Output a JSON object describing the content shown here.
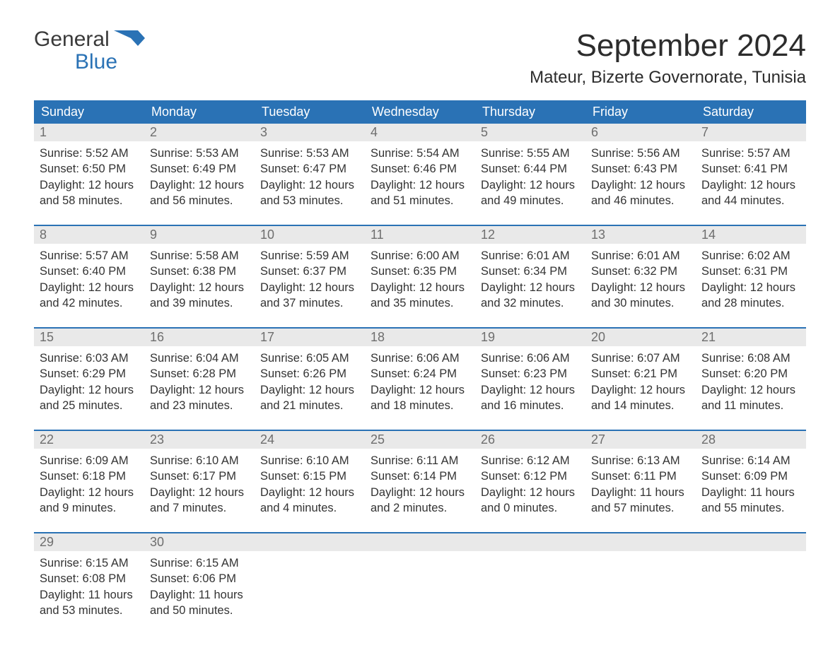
{
  "brand": {
    "general": "General",
    "blue": "Blue"
  },
  "title": "September 2024",
  "location": "Mateur, Bizerte Governorate, Tunisia",
  "colors": {
    "header_bg": "#2a72b5",
    "header_text": "#ffffff",
    "daynum_bg": "#e9e9e9",
    "daynum_text": "#6e6e6e",
    "body_text": "#333333",
    "row_divider": "#2a72b5",
    "page_bg": "#ffffff"
  },
  "typography": {
    "title_fontsize": 44,
    "location_fontsize": 24,
    "weekday_fontsize": 18,
    "daynum_fontsize": 18,
    "cell_fontsize": 16.5,
    "font_family": "Arial"
  },
  "weekdays": [
    "Sunday",
    "Monday",
    "Tuesday",
    "Wednesday",
    "Thursday",
    "Friday",
    "Saturday"
  ],
  "weeks": [
    [
      {
        "n": "1",
        "sunrise": "5:52 AM",
        "sunset": "6:50 PM",
        "dl1": "12 hours",
        "dl2": "and 58 minutes."
      },
      {
        "n": "2",
        "sunrise": "5:53 AM",
        "sunset": "6:49 PM",
        "dl1": "12 hours",
        "dl2": "and 56 minutes."
      },
      {
        "n": "3",
        "sunrise": "5:53 AM",
        "sunset": "6:47 PM",
        "dl1": "12 hours",
        "dl2": "and 53 minutes."
      },
      {
        "n": "4",
        "sunrise": "5:54 AM",
        "sunset": "6:46 PM",
        "dl1": "12 hours",
        "dl2": "and 51 minutes."
      },
      {
        "n": "5",
        "sunrise": "5:55 AM",
        "sunset": "6:44 PM",
        "dl1": "12 hours",
        "dl2": "and 49 minutes."
      },
      {
        "n": "6",
        "sunrise": "5:56 AM",
        "sunset": "6:43 PM",
        "dl1": "12 hours",
        "dl2": "and 46 minutes."
      },
      {
        "n": "7",
        "sunrise": "5:57 AM",
        "sunset": "6:41 PM",
        "dl1": "12 hours",
        "dl2": "and 44 minutes."
      }
    ],
    [
      {
        "n": "8",
        "sunrise": "5:57 AM",
        "sunset": "6:40 PM",
        "dl1": "12 hours",
        "dl2": "and 42 minutes."
      },
      {
        "n": "9",
        "sunrise": "5:58 AM",
        "sunset": "6:38 PM",
        "dl1": "12 hours",
        "dl2": "and 39 minutes."
      },
      {
        "n": "10",
        "sunrise": "5:59 AM",
        "sunset": "6:37 PM",
        "dl1": "12 hours",
        "dl2": "and 37 minutes."
      },
      {
        "n": "11",
        "sunrise": "6:00 AM",
        "sunset": "6:35 PM",
        "dl1": "12 hours",
        "dl2": "and 35 minutes."
      },
      {
        "n": "12",
        "sunrise": "6:01 AM",
        "sunset": "6:34 PM",
        "dl1": "12 hours",
        "dl2": "and 32 minutes."
      },
      {
        "n": "13",
        "sunrise": "6:01 AM",
        "sunset": "6:32 PM",
        "dl1": "12 hours",
        "dl2": "and 30 minutes."
      },
      {
        "n": "14",
        "sunrise": "6:02 AM",
        "sunset": "6:31 PM",
        "dl1": "12 hours",
        "dl2": "and 28 minutes."
      }
    ],
    [
      {
        "n": "15",
        "sunrise": "6:03 AM",
        "sunset": "6:29 PM",
        "dl1": "12 hours",
        "dl2": "and 25 minutes."
      },
      {
        "n": "16",
        "sunrise": "6:04 AM",
        "sunset": "6:28 PM",
        "dl1": "12 hours",
        "dl2": "and 23 minutes."
      },
      {
        "n": "17",
        "sunrise": "6:05 AM",
        "sunset": "6:26 PM",
        "dl1": "12 hours",
        "dl2": "and 21 minutes."
      },
      {
        "n": "18",
        "sunrise": "6:06 AM",
        "sunset": "6:24 PM",
        "dl1": "12 hours",
        "dl2": "and 18 minutes."
      },
      {
        "n": "19",
        "sunrise": "6:06 AM",
        "sunset": "6:23 PM",
        "dl1": "12 hours",
        "dl2": "and 16 minutes."
      },
      {
        "n": "20",
        "sunrise": "6:07 AM",
        "sunset": "6:21 PM",
        "dl1": "12 hours",
        "dl2": "and 14 minutes."
      },
      {
        "n": "21",
        "sunrise": "6:08 AM",
        "sunset": "6:20 PM",
        "dl1": "12 hours",
        "dl2": "and 11 minutes."
      }
    ],
    [
      {
        "n": "22",
        "sunrise": "6:09 AM",
        "sunset": "6:18 PM",
        "dl1": "12 hours",
        "dl2": "and 9 minutes."
      },
      {
        "n": "23",
        "sunrise": "6:10 AM",
        "sunset": "6:17 PM",
        "dl1": "12 hours",
        "dl2": "and 7 minutes."
      },
      {
        "n": "24",
        "sunrise": "6:10 AM",
        "sunset": "6:15 PM",
        "dl1": "12 hours",
        "dl2": "and 4 minutes."
      },
      {
        "n": "25",
        "sunrise": "6:11 AM",
        "sunset": "6:14 PM",
        "dl1": "12 hours",
        "dl2": "and 2 minutes."
      },
      {
        "n": "26",
        "sunrise": "6:12 AM",
        "sunset": "6:12 PM",
        "dl1": "12 hours",
        "dl2": "and 0 minutes."
      },
      {
        "n": "27",
        "sunrise": "6:13 AM",
        "sunset": "6:11 PM",
        "dl1": "11 hours",
        "dl2": "and 57 minutes."
      },
      {
        "n": "28",
        "sunrise": "6:14 AM",
        "sunset": "6:09 PM",
        "dl1": "11 hours",
        "dl2": "and 55 minutes."
      }
    ],
    [
      {
        "n": "29",
        "sunrise": "6:15 AM",
        "sunset": "6:08 PM",
        "dl1": "11 hours",
        "dl2": "and 53 minutes."
      },
      {
        "n": "30",
        "sunrise": "6:15 AM",
        "sunset": "6:06 PM",
        "dl1": "11 hours",
        "dl2": "and 50 minutes."
      },
      null,
      null,
      null,
      null,
      null
    ]
  ],
  "labels": {
    "sunrise": "Sunrise: ",
    "sunset": "Sunset: ",
    "daylight": "Daylight: "
  }
}
